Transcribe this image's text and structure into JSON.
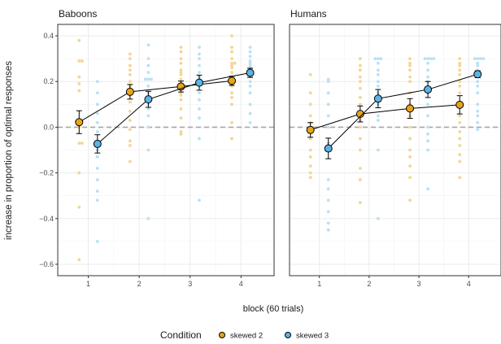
{
  "chart_data": {
    "type": "scatter",
    "ylabel": "increase in proportion of optimal responses",
    "xlabel": "block (60 trials)",
    "legend": {
      "title": "Condition",
      "position": "bottom"
    },
    "xlim": [
      0.4,
      4.65
    ],
    "ylim": [
      -0.65,
      0.45
    ],
    "x_ticks": [
      1,
      2,
      3,
      4
    ],
    "y_ticks": [
      -0.6,
      -0.4,
      -0.2,
      0.0,
      0.2,
      0.4
    ],
    "y_tick_labels": [
      "−0.6",
      "−0.4",
      "−0.2",
      "0.0",
      "0.2",
      "0.4"
    ],
    "reference_line": {
      "y": 0,
      "style": "dashed",
      "color": "#a6a6a6"
    },
    "dodge": 0.18,
    "conditions": [
      {
        "name": "skewed 2",
        "color": "#e8a319",
        "light_color": "#f5d594"
      },
      {
        "name": "skewed 3",
        "color": "#5ab4e6",
        "light_color": "#b9e0f7"
      }
    ],
    "panels": [
      {
        "title": "Baboons",
        "series": [
          {
            "name": "skewed 2",
            "means": [
              0.022,
              0.155,
              0.178,
              0.203
            ],
            "errors": [
              0.05,
              0.032,
              0.024,
              0.02
            ],
            "individuals": [
              [
                0.38,
                0.29,
                0.29,
                0.22,
                0.19,
                0.16,
                0.03,
                0.0,
                -0.07,
                -0.07,
                -0.2,
                -0.35,
                -0.58
              ],
              [
                0.32,
                0.3,
                0.27,
                0.25,
                0.23,
                0.2,
                0.18,
                0.14,
                0.11,
                0.07,
                0.03,
                -0.01,
                -0.06,
                -0.08,
                -0.15
              ],
              [
                0.35,
                0.33,
                0.3,
                0.28,
                0.25,
                0.24,
                0.23,
                0.21,
                0.18,
                0.15,
                0.14,
                0.12,
                0.08,
                0.04,
                -0.02,
                -0.03
              ],
              [
                0.4,
                0.35,
                0.33,
                0.3,
                0.28,
                0.28,
                0.27,
                0.26,
                0.24,
                0.22,
                0.2,
                0.18,
                0.15,
                0.13,
                0.1,
                0.02,
                -0.05
              ]
            ]
          },
          {
            "name": "skewed 3",
            "means": [
              -0.073,
              0.122,
              0.195,
              0.238
            ],
            "errors": [
              0.04,
              0.035,
              0.033,
              0.02
            ],
            "individuals": [
              [
                0.2,
                0.15,
                0.1,
                0.06,
                0.02,
                -0.02,
                -0.07,
                -0.1,
                -0.13,
                -0.18,
                -0.23,
                -0.28,
                -0.32,
                -0.5
              ],
              [
                0.36,
                0.3,
                0.27,
                0.24,
                0.21,
                0.21,
                0.21,
                0.18,
                0.15,
                0.12,
                0.1,
                0.08,
                0.05,
                0.0,
                -0.1,
                -0.4
              ],
              [
                0.35,
                0.32,
                0.3,
                0.27,
                0.24,
                0.22,
                0.2,
                0.18,
                0.15,
                0.12,
                0.08,
                0.04,
                -0.05,
                -0.32
              ],
              [
                0.35,
                0.33,
                0.31,
                0.29,
                0.28,
                0.27,
                0.26,
                0.25,
                0.23,
                0.2,
                0.18,
                0.15,
                0.1,
                0.06,
                0.02
              ]
            ]
          }
        ]
      },
      {
        "title": "Humans",
        "series": [
          {
            "name": "skewed 2",
            "means": [
              -0.012,
              0.058,
              0.082,
              0.098
            ],
            "errors": [
              0.032,
              0.035,
              0.043,
              0.04
            ],
            "individuals": [
              [
                0.23,
                0.15,
                0.1,
                0.05,
                0.02,
                -0.02,
                -0.05,
                -0.1,
                -0.13,
                -0.17,
                -0.2,
                -0.22
              ],
              [
                0.3,
                0.27,
                0.25,
                0.22,
                0.2,
                0.17,
                0.13,
                0.1,
                0.07,
                0.03,
                0.0,
                -0.05,
                -0.1,
                -0.18,
                -0.23,
                -0.33
              ],
              [
                0.3,
                0.28,
                0.27,
                0.25,
                0.22,
                0.2,
                0.15,
                0.1,
                0.05,
                0.0,
                -0.05,
                -0.1,
                -0.13,
                -0.17,
                -0.22,
                -0.32
              ],
              [
                0.3,
                0.28,
                0.27,
                0.25,
                0.23,
                0.2,
                0.18,
                0.15,
                0.1,
                0.05,
                0.02,
                -0.02,
                -0.05,
                -0.08,
                -0.12,
                -0.15,
                -0.22
              ]
            ]
          },
          {
            "name": "skewed 3",
            "means": [
              -0.093,
              0.125,
              0.165,
              0.232
            ],
            "errors": [
              0.045,
              0.04,
              0.035,
              0.015
            ],
            "individuals": [
              [
                0.21,
                0.2,
                0.15,
                0.1,
                0.05,
                0.0,
                -0.07,
                -0.23,
                -0.27,
                -0.32,
                -0.37,
                -0.42,
                -0.45
              ],
              [
                0.3,
                0.3,
                0.3,
                0.28,
                0.25,
                0.23,
                0.2,
                0.18,
                0.15,
                0.1,
                0.05,
                0.03,
                -0.1,
                -0.4
              ],
              [
                0.3,
                0.3,
                0.3,
                0.3,
                0.28,
                0.25,
                0.22,
                0.2,
                0.15,
                0.1,
                0.05,
                0.0,
                -0.03,
                -0.06,
                -0.1,
                -0.27
              ],
              [
                0.3,
                0.3,
                0.3,
                0.3,
                0.28,
                0.27,
                0.25,
                0.23,
                0.2,
                0.18,
                0.15,
                0.1,
                0.07,
                0.05,
                0.02,
                -0.01
              ]
            ]
          }
        ]
      }
    ]
  }
}
